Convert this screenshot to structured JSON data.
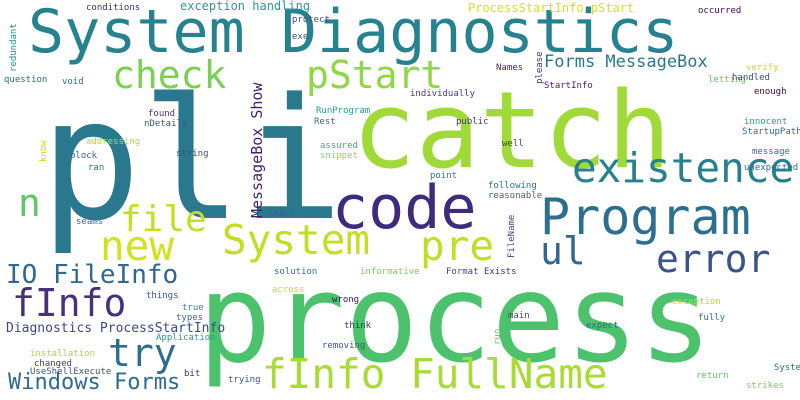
{
  "words": [
    {
      "text": "process",
      "color": "#4cc26c"
    },
    {
      "text": "catch",
      "color": "#a0da39"
    },
    {
      "text": "pli",
      "color": "#2a788e"
    },
    {
      "text": "System Diagnostics",
      "color": "#26828e"
    },
    {
      "text": "code",
      "color": "#3f2b7e"
    },
    {
      "text": "Program",
      "color": "#2d6f8e"
    },
    {
      "text": "existence",
      "color": "#27808e"
    },
    {
      "text": "fInfo FullName",
      "color": "#a8db34"
    },
    {
      "text": "System",
      "color": "#c2df23"
    },
    {
      "text": "pre",
      "color": "#bddf26"
    },
    {
      "text": "new",
      "color": "#d2e21b"
    },
    {
      "text": "check",
      "color": "#7ad151"
    },
    {
      "text": "pStart",
      "color": "#8fd744"
    },
    {
      "text": "error",
      "color": "#3b528b"
    },
    {
      "text": "file",
      "color": "#c2df23"
    },
    {
      "text": "try",
      "color": "#2e6e8e"
    },
    {
      "text": "fInfo",
      "color": "#46317e"
    },
    {
      "text": "ul",
      "color": "#31668e"
    },
    {
      "text": "n",
      "color": "#5ec962"
    },
    {
      "text": "IO FileInfo",
      "color": "#31688e"
    },
    {
      "text": "Windows Forms",
      "color": "#2f6b8e"
    },
    {
      "text": "Forms MessageBox",
      "color": "#2a788e"
    },
    {
      "text": "MessageBox Show",
      "color": "#3f1f6e"
    },
    {
      "text": "Diagnostics ProcessStartInfo",
      "color": "#3e4989"
    },
    {
      "text": "ProcessStartInfo pStart",
      "color": "#d8e219"
    },
    {
      "text": "exception handling",
      "color": "#2a9d8f"
    },
    {
      "text": "conditions",
      "color": "#3f2b7e"
    },
    {
      "text": "protect",
      "color": "#3e4989"
    },
    {
      "text": "occurred",
      "color": "#440154"
    },
    {
      "text": "exe",
      "color": "#3a548c"
    },
    {
      "text": "redundant",
      "color": "#21918c"
    },
    {
      "text": "question",
      "color": "#31668e"
    },
    {
      "text": "void",
      "color": "#2c728e"
    },
    {
      "text": "Names",
      "color": "#481b6d"
    },
    {
      "text": "please",
      "color": "#472d7b"
    },
    {
      "text": "StartInfo",
      "color": "#481b6d"
    },
    {
      "text": "verify",
      "color": "#c8e020"
    },
    {
      "text": "letting",
      "color": "#5ec962"
    },
    {
      "text": "handled",
      "color": "#414487"
    },
    {
      "text": "enough",
      "color": "#440154"
    },
    {
      "text": "individually",
      "color": "#443a83"
    },
    {
      "text": "RunProgram",
      "color": "#20a386"
    },
    {
      "text": "Rest",
      "color": "#2c728e"
    },
    {
      "text": "found",
      "color": "#46327e"
    },
    {
      "text": "nDetails",
      "color": "#3b528b"
    },
    {
      "text": "public",
      "color": "#46327e"
    },
    {
      "text": "innocent",
      "color": "#20a386"
    },
    {
      "text": "StartupPath",
      "color": "#31688e"
    },
    {
      "text": "addressing",
      "color": "#b5de2b"
    },
    {
      "text": "assured",
      "color": "#35b779"
    },
    {
      "text": "know",
      "color": "#bddf26"
    },
    {
      "text": "string",
      "color": "#3e4989"
    },
    {
      "text": "well",
      "color": "#443a83"
    },
    {
      "text": "message",
      "color": "#2a788e"
    },
    {
      "text": "block",
      "color": "#31688e"
    },
    {
      "text": "ran",
      "color": "#2c728e"
    },
    {
      "text": "snippet",
      "color": "#8fd744"
    },
    {
      "text": "point",
      "color": "#2a788e"
    },
    {
      "text": "unexpected",
      "color": "#2d708e"
    },
    {
      "text": "following",
      "color": "#2c728e"
    },
    {
      "text": "reasonable",
      "color": "#31688e"
    },
    {
      "text": "seams",
      "color": "#2c728e"
    },
    {
      "text": "Start",
      "color": "#35608d"
    },
    {
      "text": "FileName",
      "color": "#3e4989"
    },
    {
      "text": "solution",
      "color": "#2c728e"
    },
    {
      "text": "informative",
      "color": "#7ad151"
    },
    {
      "text": "Format",
      "color": "#3e4989"
    },
    {
      "text": "Exists",
      "color": "#46327e"
    },
    {
      "text": "things",
      "color": "#3b528b"
    },
    {
      "text": "across",
      "color": "#c2df23"
    },
    {
      "text": "true",
      "color": "#21918c"
    },
    {
      "text": "types",
      "color": "#2d708e"
    },
    {
      "text": "wrong",
      "color": "#471063"
    },
    {
      "text": "exception",
      "color": "#b5de2b"
    },
    {
      "text": "main",
      "color": "#3e4989"
    },
    {
      "text": "think",
      "color": "#3f2b7e"
    },
    {
      "text": "Application",
      "color": "#1f9e89"
    },
    {
      "text": "fully",
      "color": "#2a788e"
    },
    {
      "text": "expect",
      "color": "#31688e"
    },
    {
      "text": "run",
      "color": "#5ec962"
    },
    {
      "text": "removing",
      "color": "#3b528b"
    },
    {
      "text": "installation",
      "color": "#a8db34"
    },
    {
      "text": "changed",
      "color": "#46327e"
    },
    {
      "text": "UseShellExecute",
      "color": "#3b528b"
    },
    {
      "text": "bit",
      "color": "#482878"
    },
    {
      "text": "trying",
      "color": "#3b528b"
    },
    {
      "text": "return",
      "color": "#5ec962"
    },
    {
      "text": "System",
      "color": "#31688e"
    },
    {
      "text": "strikes",
      "color": "#7ad151"
    }
  ]
}
